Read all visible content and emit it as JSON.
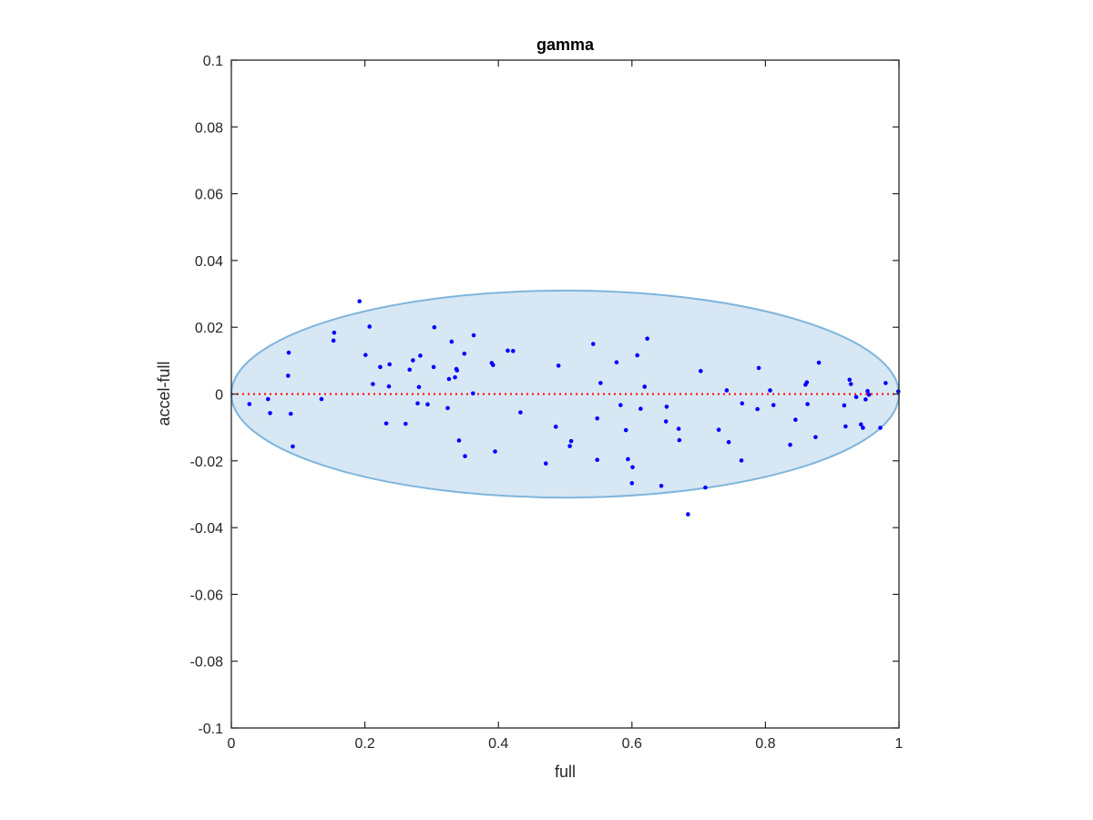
{
  "chart_data": {
    "type": "scatter",
    "title": "gamma",
    "xlabel": "full",
    "ylabel": "accel-full",
    "xlim": [
      0,
      1
    ],
    "ylim": [
      -0.1,
      0.1
    ],
    "xticks": [
      0,
      0.2,
      0.4,
      0.6,
      0.8,
      1
    ],
    "xtick_labels": [
      "0",
      "0.2",
      "0.4",
      "0.6",
      "0.8",
      "1"
    ],
    "yticks": [
      -0.1,
      -0.08,
      -0.06,
      -0.04,
      -0.02,
      0,
      0.02,
      0.04,
      0.06,
      0.08,
      0.1
    ],
    "ytick_labels": [
      "-0.1",
      "-0.08",
      "-0.06",
      "-0.04",
      "-0.02",
      "0",
      "0.02",
      "0.04",
      "0.06",
      "0.08",
      "0.1"
    ],
    "grid": false,
    "reference_line": {
      "y": 0,
      "style": "dotted",
      "color": "#ff0000"
    },
    "ellipse": {
      "center": [
        0.5,
        0
      ],
      "half_width": 0.5,
      "half_height": 0.031,
      "fill": "#d8e7f4",
      "stroke": "#7fb5dc"
    },
    "series": [
      {
        "color": "#0000ff",
        "points": [
          [
            0.027,
            -0.003
          ],
          [
            0.055,
            -0.0015
          ],
          [
            0.058,
            -0.0057
          ],
          [
            0.085,
            0.0055
          ],
          [
            0.086,
            0.0124
          ],
          [
            0.089,
            -0.0059
          ],
          [
            0.092,
            -0.0157
          ],
          [
            0.135,
            -0.0015
          ],
          [
            0.153,
            0.016
          ],
          [
            0.154,
            0.0184
          ],
          [
            0.192,
            0.0278
          ],
          [
            0.201,
            0.0117
          ],
          [
            0.207,
            0.0202
          ],
          [
            0.212,
            0.003
          ],
          [
            0.223,
            0.0081
          ],
          [
            0.232,
            -0.0088
          ],
          [
            0.236,
            0.0023
          ],
          [
            0.237,
            0.0089
          ],
          [
            0.261,
            -0.0089
          ],
          [
            0.267,
            0.0073
          ],
          [
            0.272,
            0.0101
          ],
          [
            0.279,
            -0.0028
          ],
          [
            0.281,
            0.0021
          ],
          [
            0.283,
            0.0115
          ],
          [
            0.294,
            -0.0031
          ],
          [
            0.303,
            0.0081
          ],
          [
            0.304,
            0.02
          ],
          [
            0.324,
            -0.0042
          ],
          [
            0.326,
            0.0045
          ],
          [
            0.33,
            0.0157
          ],
          [
            0.335,
            0.005
          ],
          [
            0.337,
            0.0075
          ],
          [
            0.338,
            0.0071
          ],
          [
            0.341,
            -0.0139
          ],
          [
            0.349,
            0.0121
          ],
          [
            0.35,
            -0.0186
          ],
          [
            0.362,
            0.0002
          ],
          [
            0.363,
            0.0176
          ],
          [
            0.39,
            0.0093
          ],
          [
            0.392,
            0.0087
          ],
          [
            0.395,
            -0.0172
          ],
          [
            0.414,
            0.013
          ],
          [
            0.422,
            0.0129
          ],
          [
            0.433,
            -0.0055
          ],
          [
            0.471,
            -0.0208
          ],
          [
            0.486,
            -0.0098
          ],
          [
            0.49,
            0.0085
          ],
          [
            0.507,
            -0.0156
          ],
          [
            0.509,
            -0.0141
          ],
          [
            0.542,
            0.015
          ],
          [
            0.548,
            -0.0073
          ],
          [
            0.548,
            -0.0197
          ],
          [
            0.553,
            0.0033
          ],
          [
            0.577,
            0.0095
          ],
          [
            0.583,
            -0.0033
          ],
          [
            0.591,
            -0.0108
          ],
          [
            0.594,
            -0.0195
          ],
          [
            0.6,
            -0.0267
          ],
          [
            0.601,
            -0.0219
          ],
          [
            0.608,
            0.0116
          ],
          [
            0.613,
            -0.0044
          ],
          [
            0.619,
            0.0022
          ],
          [
            0.623,
            0.0166
          ],
          [
            0.644,
            -0.0275
          ],
          [
            0.651,
            -0.0082
          ],
          [
            0.652,
            -0.0038
          ],
          [
            0.67,
            -0.0104
          ],
          [
            0.671,
            -0.0138
          ],
          [
            0.684,
            -0.036
          ],
          [
            0.703,
            0.0069
          ],
          [
            0.71,
            -0.028
          ],
          [
            0.73,
            -0.0107
          ],
          [
            0.742,
            0.0011
          ],
          [
            0.745,
            -0.0144
          ],
          [
            0.764,
            -0.0199
          ],
          [
            0.765,
            -0.0028
          ],
          [
            0.788,
            -0.0045
          ],
          [
            0.79,
            0.0078
          ],
          [
            0.807,
            0.0011
          ],
          [
            0.812,
            -0.0033
          ],
          [
            0.837,
            -0.0152
          ],
          [
            0.845,
            -0.0077
          ],
          [
            0.86,
            0.0028
          ],
          [
            0.862,
            0.0035
          ],
          [
            0.863,
            -0.003
          ],
          [
            0.875,
            -0.0129
          ],
          [
            0.88,
            0.0094
          ],
          [
            0.918,
            -0.0034
          ],
          [
            0.92,
            -0.0097
          ],
          [
            0.926,
            0.0043
          ],
          [
            0.928,
            0.003
          ],
          [
            0.936,
            -0.0009
          ],
          [
            0.943,
            -0.0091
          ],
          [
            0.946,
            -0.0101
          ],
          [
            0.95,
            -0.0016
          ],
          [
            0.953,
            0.0009
          ],
          [
            0.955,
            -0.0002
          ],
          [
            0.972,
            -0.0101
          ],
          [
            0.98,
            0.0033
          ],
          [
            0.999,
            0.0008
          ]
        ]
      }
    ]
  }
}
